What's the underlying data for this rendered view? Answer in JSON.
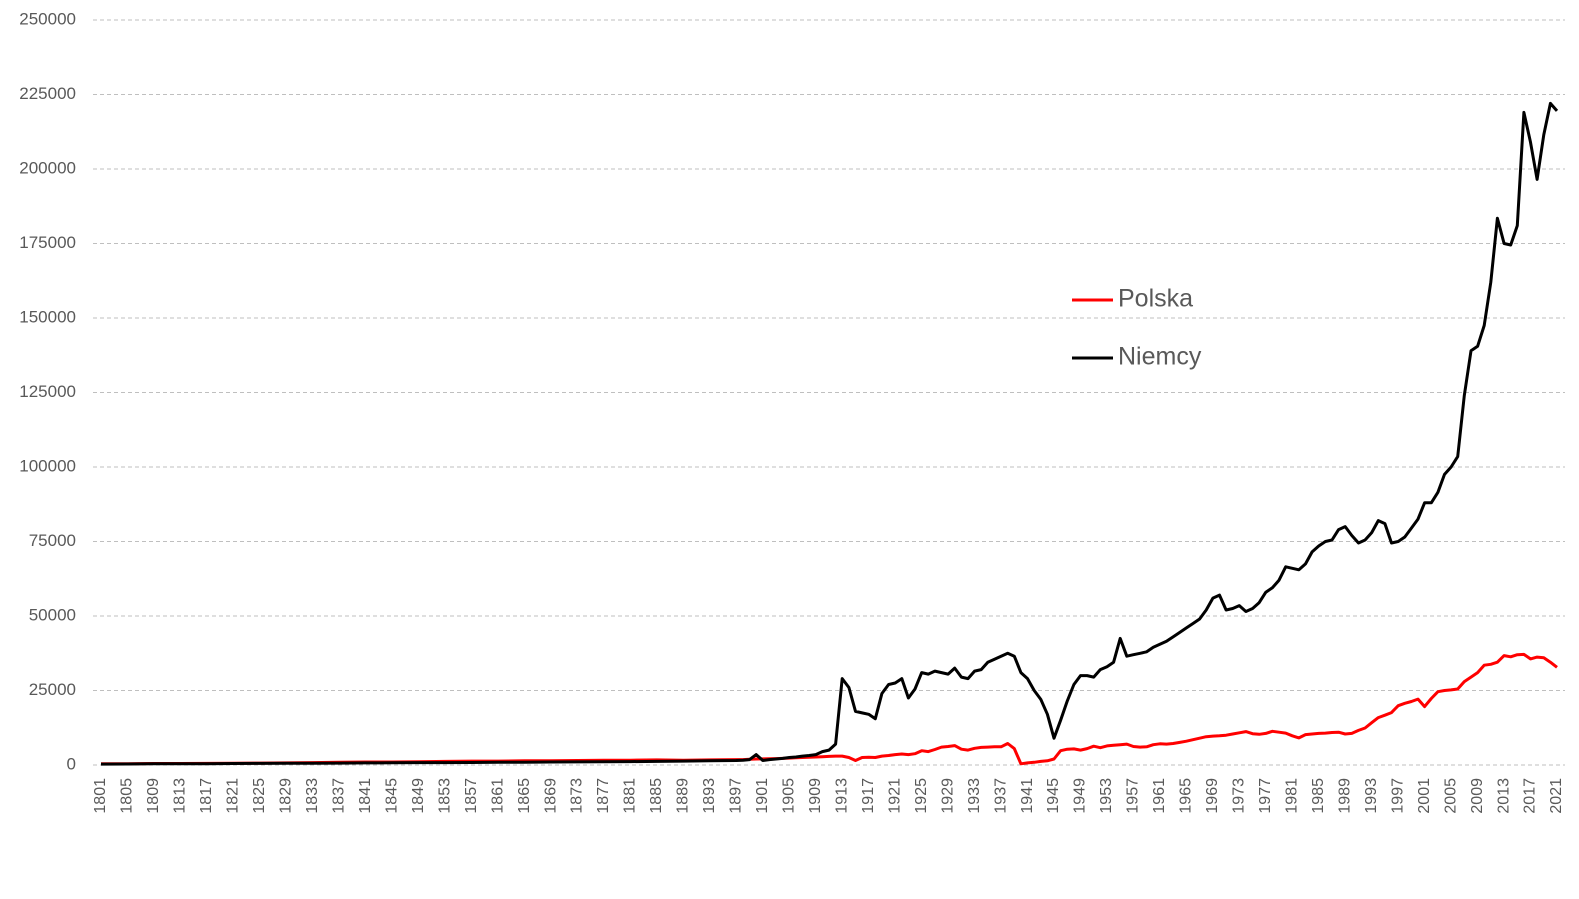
{
  "chart_data": {
    "type": "line",
    "x": [
      1801,
      1805,
      1809,
      1813,
      1817,
      1821,
      1825,
      1829,
      1833,
      1837,
      1841,
      1845,
      1849,
      1853,
      1857,
      1861,
      1865,
      1869,
      1873,
      1877,
      1881,
      1885,
      1889,
      1893,
      1897,
      1898,
      1899,
      1900,
      1901,
      1902,
      1903,
      1904,
      1905,
      1906,
      1907,
      1908,
      1909,
      1910,
      1911,
      1912,
      1913,
      1914,
      1915,
      1916,
      1917,
      1918,
      1919,
      1920,
      1921,
      1922,
      1923,
      1924,
      1925,
      1926,
      1927,
      1928,
      1929,
      1930,
      1931,
      1932,
      1933,
      1934,
      1935,
      1936,
      1937,
      1938,
      1939,
      1940,
      1941,
      1942,
      1943,
      1944,
      1945,
      1946,
      1947,
      1948,
      1949,
      1950,
      1951,
      1952,
      1953,
      1954,
      1955,
      1956,
      1957,
      1958,
      1959,
      1960,
      1961,
      1962,
      1963,
      1964,
      1965,
      1966,
      1967,
      1968,
      1969,
      1970,
      1971,
      1972,
      1973,
      1974,
      1975,
      1976,
      1977,
      1978,
      1979,
      1980,
      1981,
      1982,
      1983,
      1984,
      1985,
      1986,
      1987,
      1988,
      1989,
      1990,
      1991,
      1992,
      1993,
      1994,
      1995,
      1996,
      1997,
      1998,
      1999,
      2000,
      2001,
      2002,
      2003,
      2004,
      2005,
      2006,
      2007,
      2008,
      2009,
      2010,
      2011,
      2012,
      2013,
      2014,
      2015,
      2016,
      2017,
      2018,
      2019,
      2020,
      2021
    ],
    "series": [
      {
        "name": "Polska",
        "color": "#ff0000",
        "values": [
          400,
          450,
          500,
          500,
          550,
          600,
          650,
          700,
          800,
          900,
          1000,
          1000,
          1100,
          1200,
          1300,
          1300,
          1400,
          1400,
          1500,
          1600,
          1600,
          1700,
          1600,
          1700,
          1800,
          1800,
          1900,
          2000,
          2050,
          2100,
          2150,
          2200,
          2300,
          2400,
          2500,
          2600,
          2700,
          2800,
          2900,
          3000,
          3000,
          2500,
          1500,
          2500,
          2600,
          2500,
          3000,
          3200,
          3500,
          3700,
          3500,
          3800,
          4800,
          4500,
          5200,
          6000,
          6200,
          6500,
          5300,
          5000,
          5600,
          5900,
          6000,
          6100,
          6100,
          7200,
          5500,
          400,
          700,
          900,
          1200,
          1400,
          2000,
          4800,
          5300,
          5400,
          5000,
          5500,
          6300,
          5800,
          6400,
          6600,
          6800,
          7000,
          6200,
          6000,
          6100,
          6800,
          7100,
          7000,
          7200,
          7600,
          8000,
          8500,
          9000,
          9500,
          9700,
          9800,
          10000,
          10400,
          10800,
          11200,
          10500,
          10300,
          10600,
          11300,
          11000,
          10700,
          9800,
          9100,
          10200,
          10400,
          10600,
          10700,
          10900,
          11000,
          10400,
          10600,
          11600,
          12400,
          14200,
          15900,
          16700,
          17600,
          19900,
          20700,
          21300,
          22100,
          19600,
          22300,
          24600,
          25000,
          25200,
          25500,
          28000,
          29500,
          31000,
          33500,
          33800,
          34500,
          36700,
          36300,
          37000,
          37100,
          35600,
          36200,
          36000,
          34500,
          32800
        ]
      },
      {
        "name": "Niemcy",
        "color": "#000000",
        "values": [
          300,
          350,
          400,
          400,
          450,
          500,
          550,
          600,
          600,
          650,
          700,
          750,
          800,
          800,
          850,
          900,
          950,
          1000,
          1050,
          1100,
          1150,
          1200,
          1300,
          1400,
          1500,
          1600,
          1800,
          3500,
          1500,
          1800,
          2000,
          2200,
          2500,
          2700,
          3000,
          3200,
          3500,
          4500,
          5000,
          7000,
          29000,
          26000,
          18000,
          17500,
          17000,
          15500,
          24000,
          27000,
          27500,
          29000,
          22500,
          25500,
          31000,
          30500,
          31500,
          31000,
          30500,
          32500,
          29500,
          29000,
          31500,
          32000,
          34500,
          35500,
          36500,
          37500,
          36500,
          31000,
          29000,
          25000,
          22000,
          17000,
          9000,
          15000,
          21500,
          27000,
          30000,
          30000,
          29500,
          32000,
          33000,
          34500,
          42500,
          36500,
          37000,
          37500,
          38000,
          39500,
          40500,
          41500,
          43000,
          44500,
          46000,
          47500,
          49000,
          52000,
          56000,
          57000,
          52000,
          52500,
          53500,
          51500,
          52500,
          54500,
          58000,
          59500,
          62000,
          66500,
          66000,
          65500,
          67500,
          71500,
          73500,
          75000,
          75500,
          79000,
          80000,
          77000,
          74500,
          75500,
          78000,
          82000,
          81000,
          74500,
          75000,
          76500,
          79500,
          82500,
          88000,
          88000,
          91500,
          97500,
          100000,
          103500,
          124000,
          139000,
          140500,
          147500,
          162000,
          183500,
          175000,
          174500,
          181000,
          219000,
          209000,
          196500,
          211500,
          222000,
          219500
        ]
      }
    ],
    "xlim": [
      1801,
      2021
    ],
    "xticks": [
      1801,
      1805,
      1809,
      1813,
      1817,
      1821,
      1825,
      1829,
      1833,
      1837,
      1841,
      1845,
      1849,
      1853,
      1857,
      1861,
      1865,
      1869,
      1873,
      1877,
      1881,
      1885,
      1889,
      1893,
      1897,
      1901,
      1905,
      1909,
      1913,
      1917,
      1921,
      1925,
      1929,
      1933,
      1937,
      1941,
      1945,
      1949,
      1953,
      1957,
      1961,
      1965,
      1969,
      1973,
      1977,
      1981,
      1985,
      1989,
      1993,
      1997,
      2001,
      2005,
      2009,
      2013,
      2017,
      2021
    ],
    "ylim": [
      0,
      250000
    ],
    "yticks": [
      0,
      25000,
      50000,
      75000,
      100000,
      125000,
      150000,
      175000,
      200000,
      225000,
      250000
    ],
    "grid": true
  }
}
